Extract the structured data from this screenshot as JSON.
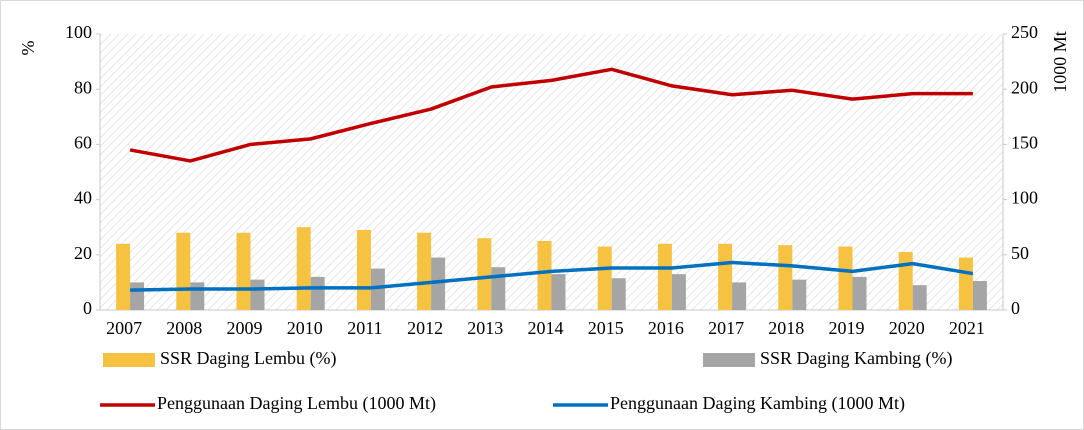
{
  "chart_data": {
    "type": "bar-line",
    "ylabel": "%",
    "y2label": "1000 Mt",
    "categories": [
      "2007",
      "2008",
      "2009",
      "2010",
      "2011",
      "2012",
      "2013",
      "2014",
      "2015",
      "2016",
      "2017",
      "2018",
      "2019",
      "2020",
      "2021"
    ],
    "series": [
      {
        "name": "SSR Daging Lembu (%)",
        "type": "bar",
        "axis": "y",
        "color": "#f5c242",
        "values": [
          24,
          28,
          28,
          30,
          29,
          28,
          26,
          25,
          23,
          24,
          24,
          23.5,
          23,
          21,
          19
        ]
      },
      {
        "name": "SSR Daging Kambing (%)",
        "type": "bar",
        "axis": "y",
        "color": "#a5a5a5",
        "values": [
          10,
          10,
          11,
          12,
          15,
          19,
          15.5,
          13,
          11.5,
          13,
          10,
          11,
          12,
          9,
          10.5
        ]
      },
      {
        "name": "Penggunaan Daging Lembu (1000 Mt)",
        "type": "line",
        "axis": "y2",
        "color": "#c00000",
        "values": [
          145,
          135,
          150,
          155,
          169,
          182,
          202,
          208,
          218,
          203,
          195,
          199,
          191,
          196,
          196
        ]
      },
      {
        "name": "Penggunaan Daging Kambing (1000 Mt)",
        "type": "line",
        "axis": "y2",
        "color": "#0070c0",
        "values": [
          18,
          19,
          19,
          20,
          20,
          25,
          30,
          35,
          38,
          38,
          43,
          40,
          35,
          42,
          33
        ]
      }
    ],
    "ylim": [
      0,
      100
    ],
    "yticks": [
      0,
      20,
      40,
      60,
      80,
      100
    ],
    "y2lim": [
      0,
      250
    ],
    "y2ticks": [
      0,
      50,
      100,
      150,
      200,
      250
    ]
  }
}
